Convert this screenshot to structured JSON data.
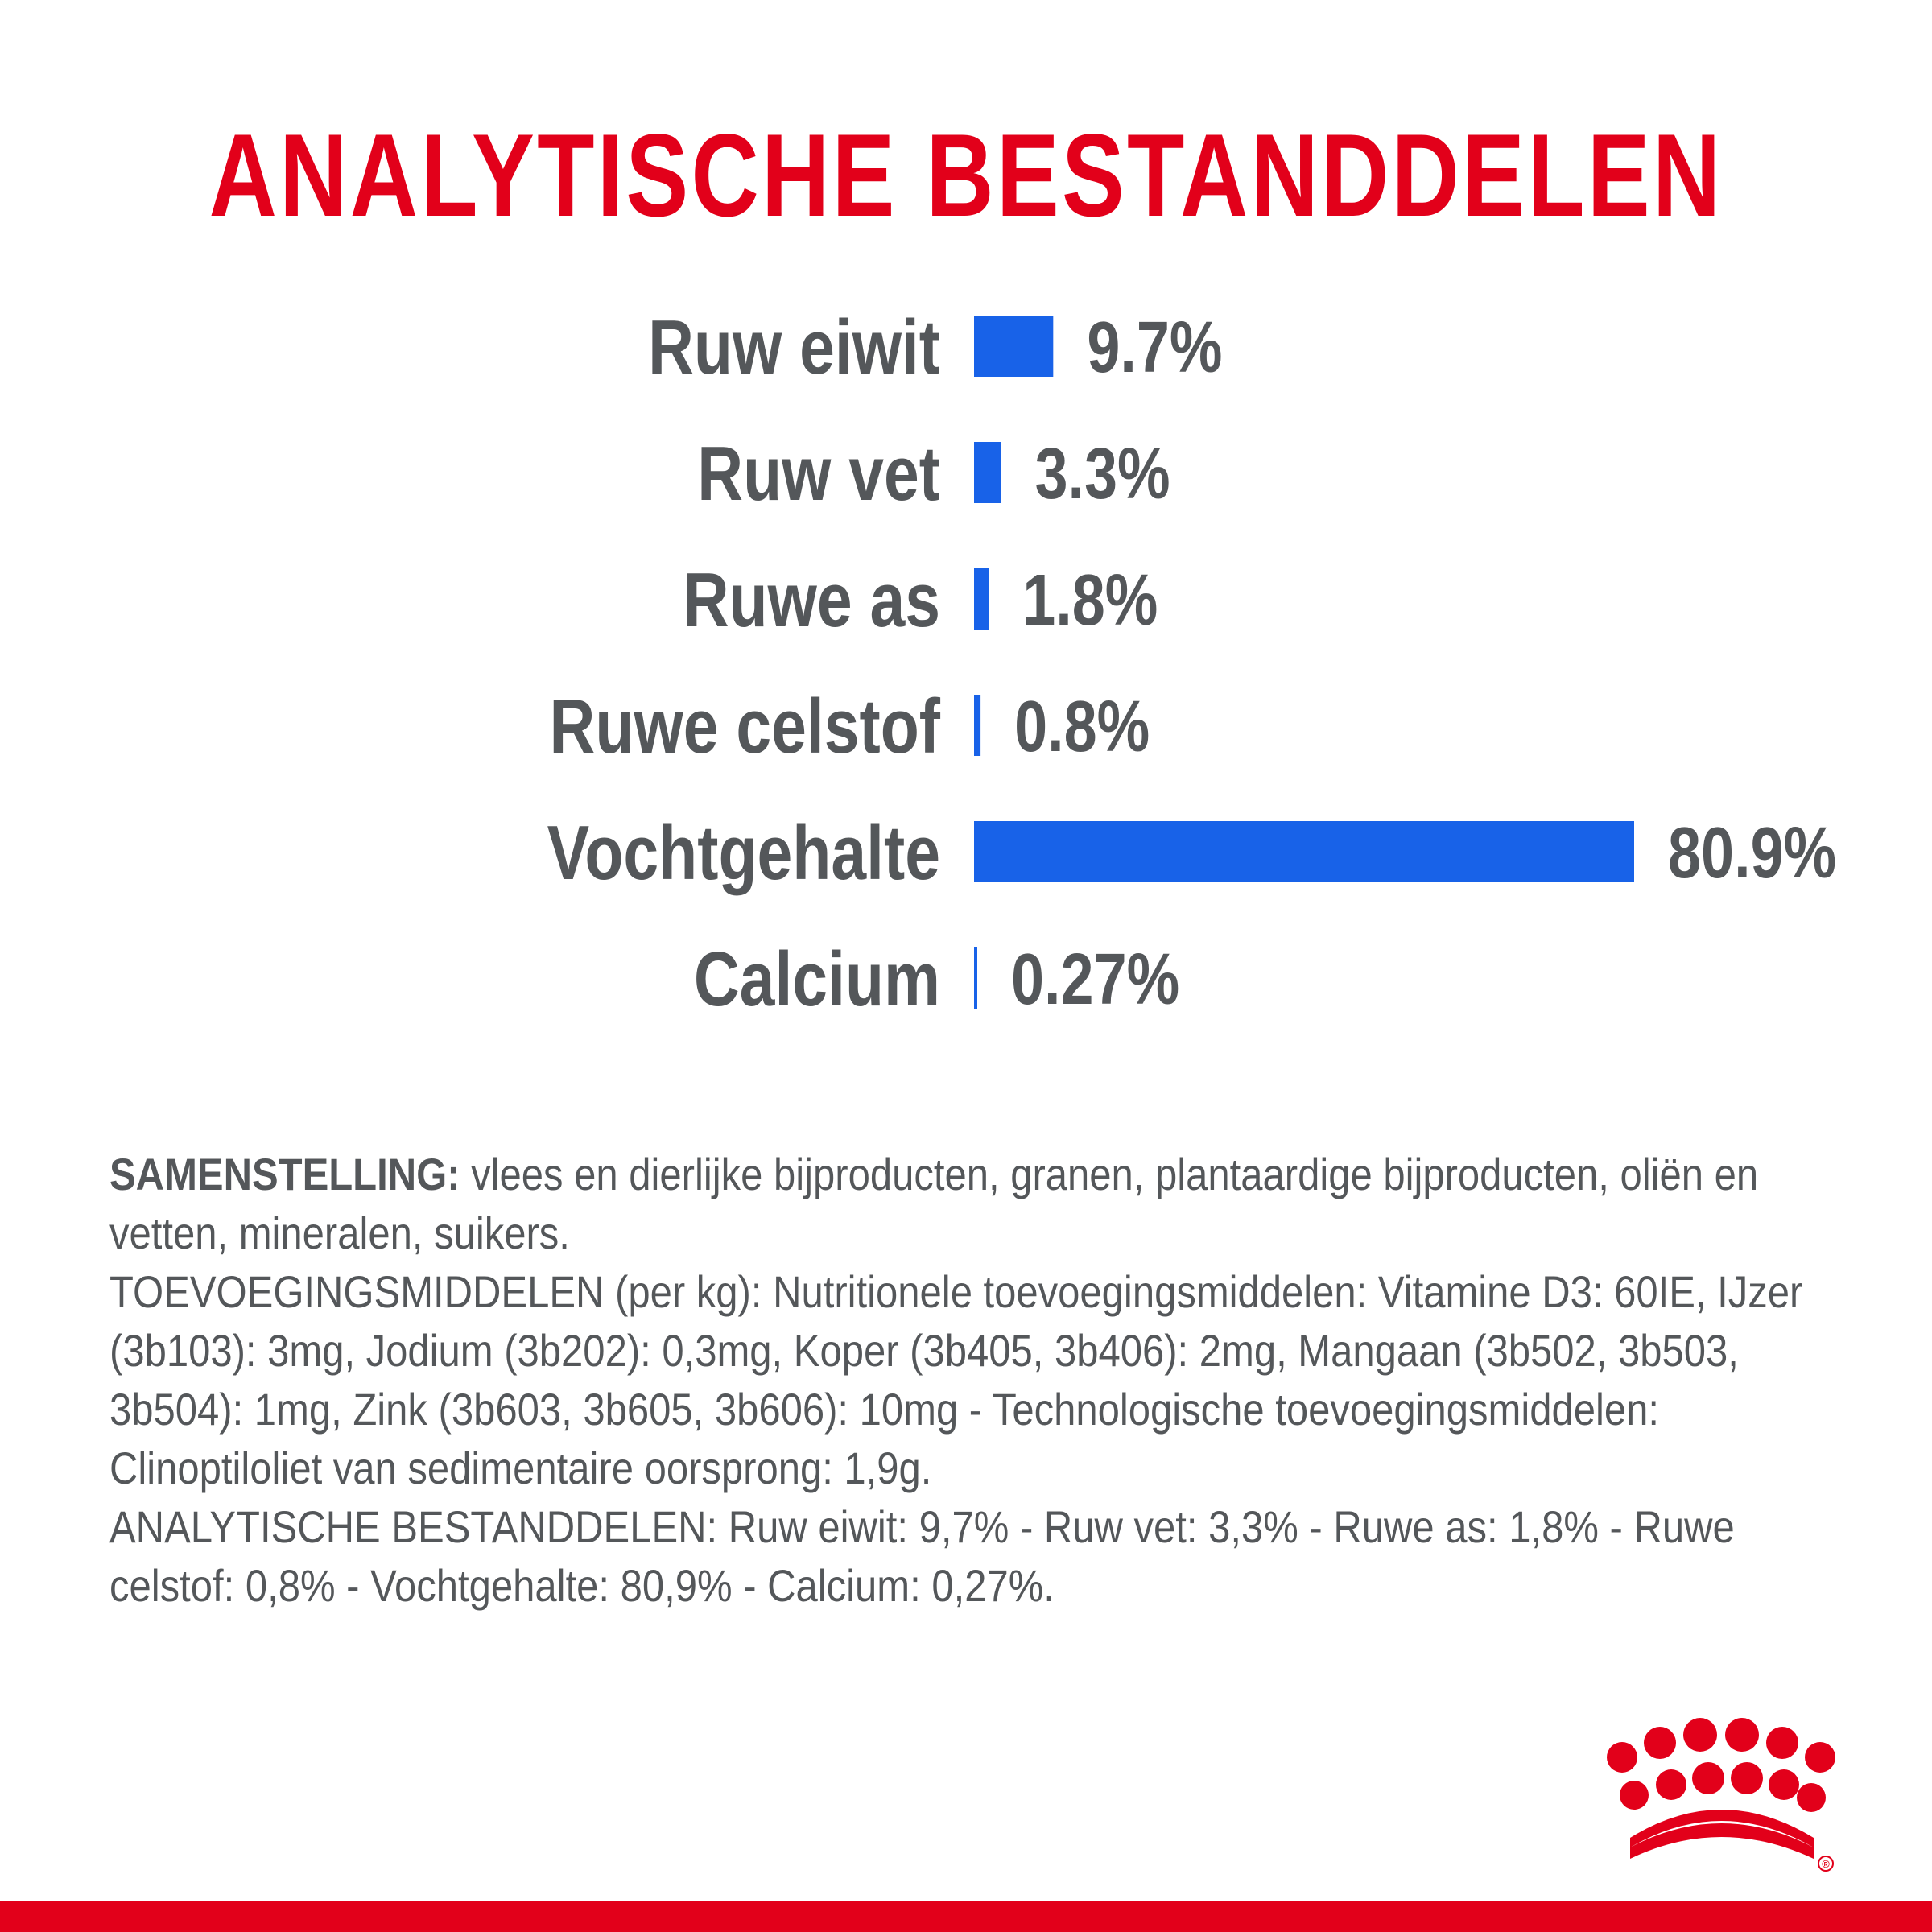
{
  "title": "ANALYTISCHE BESTANDDELEN",
  "chart_data": {
    "type": "bar",
    "orientation": "horizontal",
    "title": "ANALYTISCHE BESTANDDELEN",
    "categories": [
      "Ruw eiwit",
      "Ruw vet",
      "Ruwe as",
      "Ruwe celstof",
      "Vochtgehalte",
      "Calcium"
    ],
    "values": [
      9.7,
      3.3,
      1.8,
      0.8,
      80.9,
      0.27
    ],
    "value_labels": [
      "9.7%",
      "3.3%",
      "1.8%",
      "0.8%",
      "80.9%",
      "0.27%"
    ],
    "unit": "%",
    "xlabel": "",
    "ylabel": "",
    "bar_color": "#1862e8",
    "axis_visible": false,
    "grid": false,
    "legend": "none"
  },
  "composition": {
    "heading": "SAMENSTELLING:",
    "lines": [
      "vlees en dierlijke bijproducten, granen, plantaardige bijproducten, oliën en vetten, mineralen, suikers.",
      "TOEVOEGINGSMIDDELEN (per kg): Nutritionele toevoegingsmiddelen: Vitamine D3: 60IE, IJzer (3b103): 3mg, Jodium (3b202): 0,3mg, Koper (3b405, 3b406): 2mg, Mangaan (3b502, 3b503, 3b504): 1mg, Zink (3b603, 3b605, 3b606): 10mg - Technologische toevoegingsmiddelen: Clinoptiloliet van sedimentaire oorsprong: 1,9g.",
      "ANALYTISCHE BESTANDDELEN: Ruw eiwit: 9,7% - Ruw vet: 3,3% - Ruwe as: 1,8% - Ruwe celstof: 0,8% - Vochtgehalte: 80,9% - Calcium: 0,27%."
    ]
  },
  "logo": {
    "name": "crown-logo",
    "registered_mark": "®"
  },
  "colors": {
    "brand_red": "#e2001a",
    "bar_blue": "#1862e8",
    "text_gray": "#54575a"
  }
}
